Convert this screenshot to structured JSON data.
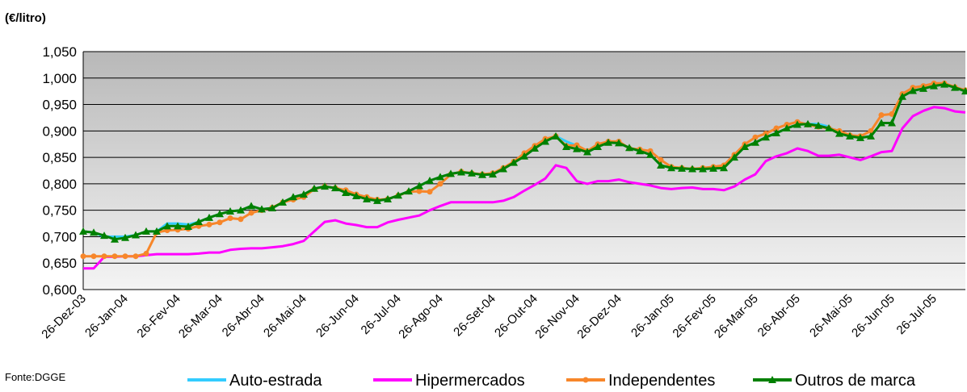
{
  "chart_data": {
    "type": "line",
    "title": "(€/litro)",
    "source": "Fonte:DGGE",
    "categories": [
      "26-Dez-03",
      null,
      null,
      null,
      "26-Jan-04",
      null,
      null,
      null,
      null,
      "26-Fev-04",
      null,
      null,
      null,
      "26-Mar-04",
      null,
      null,
      null,
      "26-Abr-04",
      null,
      null,
      null,
      "26-Mai-04",
      null,
      null,
      null,
      null,
      "26-Jun-04",
      null,
      null,
      null,
      "26-Jul-04",
      null,
      null,
      null,
      "26-Ago-04",
      null,
      null,
      null,
      null,
      "26-Set-04",
      null,
      null,
      null,
      "26-Out-04",
      null,
      null,
      null,
      "26-Nov-04",
      null,
      null,
      null,
      "26-Dez-04",
      null,
      null,
      null,
      null,
      "26-Jan-05",
      null,
      null,
      null,
      "26-Fev-05",
      null,
      null,
      null,
      "26-Mar-05",
      null,
      null,
      null,
      "26-Abr-05",
      null,
      null,
      null,
      null,
      "26-Mai-05",
      null,
      null,
      null,
      "26-Jun-05",
      null,
      null,
      null,
      "26-Jul-05",
      null,
      null,
      null
    ],
    "ylim": [
      0.6,
      1.05
    ],
    "yticks": [
      {
        "value": 0.6,
        "label": "0,600"
      },
      {
        "value": 0.65,
        "label": "0,650"
      },
      {
        "value": 0.7,
        "label": "0,700"
      },
      {
        "value": 0.75,
        "label": "0,750"
      },
      {
        "value": 0.8,
        "label": "0,800"
      },
      {
        "value": 0.85,
        "label": "0,850"
      },
      {
        "value": 0.9,
        "label": "0,900"
      },
      {
        "value": 0.95,
        "label": "0,950"
      },
      {
        "value": 1.0,
        "label": "1,000"
      },
      {
        "value": 1.05,
        "label": "1,050"
      }
    ],
    "grid": true,
    "legend": "bottom",
    "series": [
      {
        "name": "Auto-estrada",
        "color": "#33ccff",
        "marker": "none",
        "values": [
          0.71,
          0.708,
          0.7,
          0.7,
          0.7,
          0.703,
          0.71,
          0.71,
          0.725,
          0.725,
          0.723,
          0.728,
          0.736,
          0.743,
          0.748,
          0.75,
          0.758,
          0.752,
          0.754,
          0.765,
          0.775,
          0.78,
          0.791,
          0.795,
          0.792,
          0.783,
          0.777,
          0.771,
          0.768,
          0.771,
          0.778,
          0.786,
          0.796,
          0.806,
          0.813,
          0.819,
          0.822,
          0.82,
          0.817,
          0.818,
          0.828,
          0.84,
          0.852,
          0.867,
          0.88,
          0.89,
          0.88,
          0.872,
          0.86,
          0.87,
          0.878,
          0.877,
          0.868,
          0.862,
          0.855,
          0.835,
          0.83,
          0.829,
          0.828,
          0.828,
          0.829,
          0.83,
          0.85,
          0.87,
          0.878,
          0.888,
          0.896,
          0.905,
          0.912,
          0.913,
          0.913,
          0.908,
          0.895,
          0.89,
          0.887,
          0.89,
          0.915,
          0.915,
          0.965,
          0.976,
          0.98,
          0.985,
          0.988,
          0.982,
          0.975
        ]
      },
      {
        "name": "Hipermercados",
        "color": "#ff00ff",
        "marker": "none",
        "values": [
          0.64,
          0.64,
          0.662,
          0.662,
          0.663,
          0.663,
          0.665,
          0.667,
          0.667,
          0.667,
          0.667,
          0.668,
          0.67,
          0.67,
          0.675,
          0.677,
          0.678,
          0.678,
          0.68,
          0.682,
          0.686,
          0.692,
          0.71,
          0.728,
          0.731,
          0.725,
          0.722,
          0.718,
          0.718,
          0.727,
          0.732,
          0.736,
          0.74,
          0.75,
          0.758,
          0.765,
          0.765,
          0.765,
          0.765,
          0.765,
          0.768,
          0.775,
          0.787,
          0.798,
          0.81,
          0.835,
          0.83,
          0.805,
          0.8,
          0.805,
          0.805,
          0.808,
          0.803,
          0.8,
          0.797,
          0.792,
          0.79,
          0.792,
          0.793,
          0.79,
          0.79,
          0.788,
          0.795,
          0.808,
          0.818,
          0.843,
          0.852,
          0.858,
          0.867,
          0.862,
          0.853,
          0.853,
          0.855,
          0.85,
          0.845,
          0.852,
          0.86,
          0.862,
          0.905,
          0.928,
          0.938,
          0.945,
          0.943,
          0.937,
          0.935
        ]
      },
      {
        "name": "Independentes",
        "color": "#f7862a",
        "marker": "circle",
        "values": [
          0.663,
          0.663,
          0.663,
          0.663,
          0.663,
          0.663,
          0.668,
          0.708,
          0.712,
          0.713,
          0.715,
          0.72,
          0.723,
          0.727,
          0.735,
          0.733,
          0.745,
          0.75,
          0.755,
          0.765,
          0.77,
          0.775,
          0.79,
          0.795,
          0.792,
          0.788,
          0.78,
          0.775,
          0.77,
          0.771,
          0.778,
          0.785,
          0.786,
          0.785,
          0.8,
          0.818,
          0.823,
          0.82,
          0.818,
          0.82,
          0.83,
          0.842,
          0.858,
          0.872,
          0.885,
          0.89,
          0.872,
          0.873,
          0.862,
          0.875,
          0.88,
          0.88,
          0.867,
          0.865,
          0.862,
          0.845,
          0.832,
          0.83,
          0.828,
          0.83,
          0.832,
          0.835,
          0.855,
          0.875,
          0.888,
          0.895,
          0.905,
          0.912,
          0.917,
          0.912,
          0.908,
          0.905,
          0.9,
          0.892,
          0.89,
          0.9,
          0.93,
          0.932,
          0.97,
          0.982,
          0.985,
          0.99,
          0.99,
          0.983,
          0.977
        ]
      },
      {
        "name": "Outros de marca",
        "color": "#008000",
        "marker": "triangle",
        "values": [
          0.71,
          0.708,
          0.702,
          0.695,
          0.698,
          0.703,
          0.71,
          0.71,
          0.72,
          0.72,
          0.719,
          0.728,
          0.736,
          0.743,
          0.748,
          0.75,
          0.758,
          0.752,
          0.754,
          0.765,
          0.775,
          0.78,
          0.791,
          0.795,
          0.792,
          0.783,
          0.777,
          0.771,
          0.768,
          0.771,
          0.778,
          0.786,
          0.796,
          0.806,
          0.813,
          0.819,
          0.822,
          0.82,
          0.817,
          0.818,
          0.828,
          0.84,
          0.852,
          0.867,
          0.88,
          0.89,
          0.87,
          0.866,
          0.86,
          0.87,
          0.878,
          0.877,
          0.868,
          0.862,
          0.855,
          0.835,
          0.83,
          0.829,
          0.828,
          0.828,
          0.829,
          0.83,
          0.85,
          0.87,
          0.878,
          0.888,
          0.896,
          0.905,
          0.912,
          0.913,
          0.91,
          0.905,
          0.895,
          0.89,
          0.887,
          0.89,
          0.915,
          0.915,
          0.965,
          0.976,
          0.98,
          0.985,
          0.988,
          0.982,
          0.975
        ]
      }
    ]
  }
}
